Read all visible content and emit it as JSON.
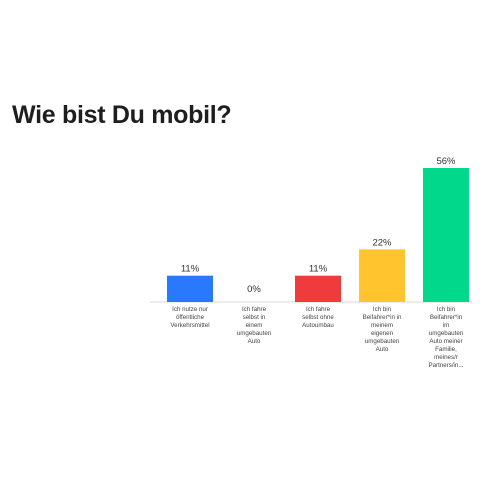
{
  "title": "Wie bist Du mobil?",
  "chart_data": {
    "type": "bar",
    "title": "Wie bist Du mobil?",
    "xlabel": "",
    "ylabel": "",
    "ylim": [
      0,
      56
    ],
    "grid": false,
    "legend": "none",
    "categories": [
      "Ich nutze nur öffentliche Verkehrsmittel",
      "Ich fahre selbst in einem umgebauten Auto",
      "Ich fahre selbst ohne Autoumbau",
      "Ich bin Beifahrer*in in meinem eigenen umgebauten Auto",
      "Ich bin Beifahrer*in im umgebauten Auto meiner Familie, meines/r Partners/in..."
    ],
    "category_lines": [
      [
        "Ich nutze nur",
        "öffentliche",
        "Verkehrsmittel"
      ],
      [
        "Ich fahre",
        "selbst in",
        "einem",
        "umgebauten",
        "Auto"
      ],
      [
        "Ich fahre",
        "selbst ohne",
        "Autoumbau"
      ],
      [
        "Ich bin",
        "Beifahrer*in in",
        "meinem",
        "eigenen",
        "umgebauten",
        "Auto"
      ],
      [
        "Ich bin",
        "Beifahrer*in",
        "im",
        "umgebauten",
        "Auto meiner",
        "Familie,",
        "meines/r",
        "Partners/in..."
      ]
    ],
    "values": [
      11,
      0,
      11,
      22,
      56
    ],
    "value_labels": [
      "11%",
      "0%",
      "11%",
      "22%",
      "56%"
    ],
    "colors": [
      "#2979ff",
      "#2979ff",
      "#ef3b3b",
      "#ffc42e",
      "#00d98b"
    ]
  }
}
